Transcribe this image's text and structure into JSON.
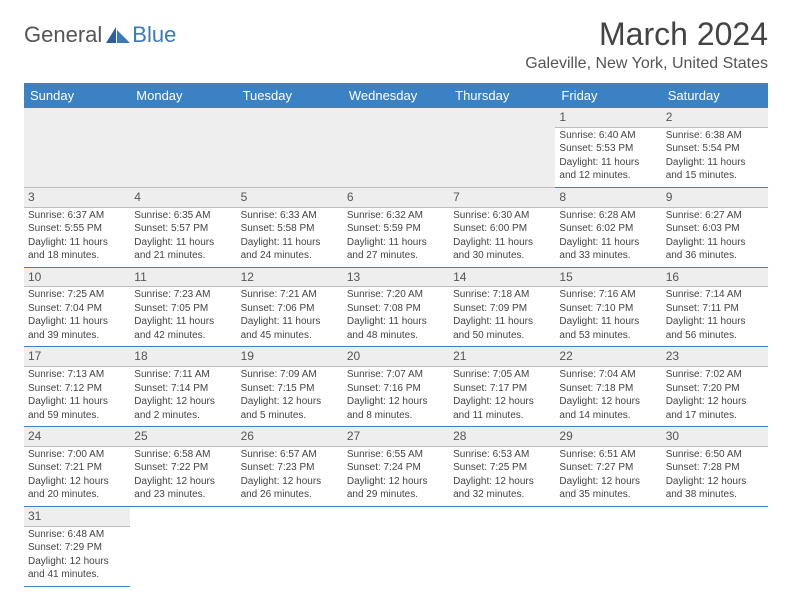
{
  "logo": {
    "general": "General",
    "blue": "Blue"
  },
  "title": "March 2024",
  "location": "Galeville, New York, United States",
  "day_headers": [
    "Sunday",
    "Monday",
    "Tuesday",
    "Wednesday",
    "Thursday",
    "Friday",
    "Saturday"
  ],
  "colors": {
    "header_bg": "#3b82c4",
    "header_text": "#ffffff",
    "cell_border": "#3b82c4",
    "daynum_bg": "#eeeeee",
    "daynum_border": "#bdbdbd",
    "logo_blue": "#3b7ab8"
  },
  "days": {
    "1": {
      "sunrise": "6:40 AM",
      "sunset": "5:53 PM",
      "daylight": "11 hours and 12 minutes."
    },
    "2": {
      "sunrise": "6:38 AM",
      "sunset": "5:54 PM",
      "daylight": "11 hours and 15 minutes."
    },
    "3": {
      "sunrise": "6:37 AM",
      "sunset": "5:55 PM",
      "daylight": "11 hours and 18 minutes."
    },
    "4": {
      "sunrise": "6:35 AM",
      "sunset": "5:57 PM",
      "daylight": "11 hours and 21 minutes."
    },
    "5": {
      "sunrise": "6:33 AM",
      "sunset": "5:58 PM",
      "daylight": "11 hours and 24 minutes."
    },
    "6": {
      "sunrise": "6:32 AM",
      "sunset": "5:59 PM",
      "daylight": "11 hours and 27 minutes."
    },
    "7": {
      "sunrise": "6:30 AM",
      "sunset": "6:00 PM",
      "daylight": "11 hours and 30 minutes."
    },
    "8": {
      "sunrise": "6:28 AM",
      "sunset": "6:02 PM",
      "daylight": "11 hours and 33 minutes."
    },
    "9": {
      "sunrise": "6:27 AM",
      "sunset": "6:03 PM",
      "daylight": "11 hours and 36 minutes."
    },
    "10": {
      "sunrise": "7:25 AM",
      "sunset": "7:04 PM",
      "daylight": "11 hours and 39 minutes."
    },
    "11": {
      "sunrise": "7:23 AM",
      "sunset": "7:05 PM",
      "daylight": "11 hours and 42 minutes."
    },
    "12": {
      "sunrise": "7:21 AM",
      "sunset": "7:06 PM",
      "daylight": "11 hours and 45 minutes."
    },
    "13": {
      "sunrise": "7:20 AM",
      "sunset": "7:08 PM",
      "daylight": "11 hours and 48 minutes."
    },
    "14": {
      "sunrise": "7:18 AM",
      "sunset": "7:09 PM",
      "daylight": "11 hours and 50 minutes."
    },
    "15": {
      "sunrise": "7:16 AM",
      "sunset": "7:10 PM",
      "daylight": "11 hours and 53 minutes."
    },
    "16": {
      "sunrise": "7:14 AM",
      "sunset": "7:11 PM",
      "daylight": "11 hours and 56 minutes."
    },
    "17": {
      "sunrise": "7:13 AM",
      "sunset": "7:12 PM",
      "daylight": "11 hours and 59 minutes."
    },
    "18": {
      "sunrise": "7:11 AM",
      "sunset": "7:14 PM",
      "daylight": "12 hours and 2 minutes."
    },
    "19": {
      "sunrise": "7:09 AM",
      "sunset": "7:15 PM",
      "daylight": "12 hours and 5 minutes."
    },
    "20": {
      "sunrise": "7:07 AM",
      "sunset": "7:16 PM",
      "daylight": "12 hours and 8 minutes."
    },
    "21": {
      "sunrise": "7:05 AM",
      "sunset": "7:17 PM",
      "daylight": "12 hours and 11 minutes."
    },
    "22": {
      "sunrise": "7:04 AM",
      "sunset": "7:18 PM",
      "daylight": "12 hours and 14 minutes."
    },
    "23": {
      "sunrise": "7:02 AM",
      "sunset": "7:20 PM",
      "daylight": "12 hours and 17 minutes."
    },
    "24": {
      "sunrise": "7:00 AM",
      "sunset": "7:21 PM",
      "daylight": "12 hours and 20 minutes."
    },
    "25": {
      "sunrise": "6:58 AM",
      "sunset": "7:22 PM",
      "daylight": "12 hours and 23 minutes."
    },
    "26": {
      "sunrise": "6:57 AM",
      "sunset": "7:23 PM",
      "daylight": "12 hours and 26 minutes."
    },
    "27": {
      "sunrise": "6:55 AM",
      "sunset": "7:24 PM",
      "daylight": "12 hours and 29 minutes."
    },
    "28": {
      "sunrise": "6:53 AM",
      "sunset": "7:25 PM",
      "daylight": "12 hours and 32 minutes."
    },
    "29": {
      "sunrise": "6:51 AM",
      "sunset": "7:27 PM",
      "daylight": "12 hours and 35 minutes."
    },
    "30": {
      "sunrise": "6:50 AM",
      "sunset": "7:28 PM",
      "daylight": "12 hours and 38 minutes."
    },
    "31": {
      "sunrise": "6:48 AM",
      "sunset": "7:29 PM",
      "daylight": "12 hours and 41 minutes."
    }
  },
  "labels": {
    "sunrise": "Sunrise: ",
    "sunset": "Sunset: ",
    "daylight": "Daylight: "
  },
  "grid": [
    [
      null,
      null,
      null,
      null,
      null,
      "1",
      "2"
    ],
    [
      "3",
      "4",
      "5",
      "6",
      "7",
      "8",
      "9"
    ],
    [
      "10",
      "11",
      "12",
      "13",
      "14",
      "15",
      "16"
    ],
    [
      "17",
      "18",
      "19",
      "20",
      "21",
      "22",
      "23"
    ],
    [
      "24",
      "25",
      "26",
      "27",
      "28",
      "29",
      "30"
    ],
    [
      "31",
      null,
      null,
      null,
      null,
      null,
      null
    ]
  ]
}
